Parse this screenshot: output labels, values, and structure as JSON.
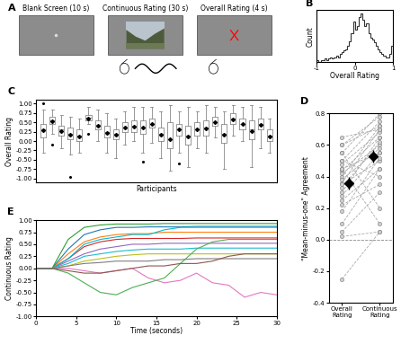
{
  "diagram": {
    "label": "A",
    "type": "task_schematic",
    "screens": [
      "Blank Screen (10 s)",
      "Continuous Rating (30 s)",
      "Overall Rating (4 s)"
    ]
  },
  "chart_data": [
    {
      "type": "histogram",
      "title": "B",
      "x_label": "Overall Rating",
      "y_label": "Count",
      "bins": [
        -1.0,
        -0.95,
        -0.9,
        -0.85,
        -0.8,
        -0.75,
        -0.7,
        -0.65,
        -0.6,
        -0.55,
        -0.5,
        -0.45,
        -0.4,
        -0.35,
        -0.3,
        -0.25,
        -0.2,
        -0.15,
        -0.1,
        -0.05,
        0.0,
        0.05,
        0.1,
        0.15,
        0.2,
        0.25,
        0.3,
        0.35,
        0.4,
        0.45,
        0.5,
        0.55,
        0.6,
        0.65,
        0.7,
        0.75,
        0.8,
        0.85,
        0.9,
        0.95,
        1.0
      ],
      "counts": [
        1,
        0,
        1,
        1,
        2,
        1,
        2,
        3,
        2,
        3,
        4,
        3,
        5,
        6,
        7,
        8,
        10,
        13,
        18,
        25,
        20,
        22,
        28,
        30,
        26,
        22,
        24,
        18,
        15,
        14,
        12,
        10,
        8,
        6,
        5,
        4,
        3,
        3,
        5,
        10
      ],
      "color": "#333333",
      "xlim": [
        -1,
        1
      ],
      "xticks": [
        -1,
        0,
        1
      ],
      "ylim": [
        0,
        32
      ],
      "tick_labels": "x"
    },
    {
      "type": "box",
      "title": "C",
      "x_label": "Participants",
      "y_label": "Overall Rating",
      "categories": [
        null,
        null,
        null,
        null,
        null,
        null,
        null,
        null,
        null,
        null,
        null,
        null,
        null,
        null,
        null,
        null,
        null,
        null,
        null,
        null,
        null,
        null,
        null,
        null,
        null,
        null
      ],
      "boxes": [
        {
          "whislo": -0.3,
          "q1": 0.1,
          "med": 0.3,
          "q3": 0.45,
          "whishi": 0.85,
          "mean": 0.28,
          "fliers": [
            1.0
          ]
        },
        {
          "whislo": 0.2,
          "q1": 0.45,
          "med": 0.55,
          "q3": 0.65,
          "whishi": 0.85,
          "mean": 0.52,
          "fliers": [
            -0.1
          ]
        },
        {
          "whislo": -0.2,
          "q1": 0.15,
          "med": 0.3,
          "q3": 0.4,
          "whishi": 0.7,
          "mean": 0.27,
          "fliers": []
        },
        {
          "whislo": -0.35,
          "q1": 0.05,
          "med": 0.2,
          "q3": 0.35,
          "whishi": 0.65,
          "mean": 0.18,
          "fliers": [
            -0.95
          ]
        },
        {
          "whislo": -0.3,
          "q1": 0.0,
          "med": 0.15,
          "q3": 0.3,
          "whishi": 0.6,
          "mean": 0.13,
          "fliers": []
        },
        {
          "whislo": 0.45,
          "q1": 0.55,
          "med": 0.62,
          "q3": 0.7,
          "whishi": 0.9,
          "mean": 0.6,
          "fliers": [
            0.2
          ]
        },
        {
          "whislo": 0.0,
          "q1": 0.3,
          "med": 0.42,
          "q3": 0.55,
          "whishi": 0.85,
          "mean": 0.4,
          "fliers": []
        },
        {
          "whislo": -0.3,
          "q1": 0.1,
          "med": 0.25,
          "q3": 0.4,
          "whishi": 0.75,
          "mean": 0.22,
          "fliers": []
        },
        {
          "whislo": -0.45,
          "q1": 0.05,
          "med": 0.2,
          "q3": 0.3,
          "whishi": 0.6,
          "mean": 0.17,
          "fliers": []
        },
        {
          "whislo": -0.1,
          "q1": 0.25,
          "med": 0.35,
          "q3": 0.5,
          "whishi": 0.8,
          "mean": 0.37,
          "fliers": []
        },
        {
          "whislo": 0.0,
          "q1": 0.25,
          "med": 0.4,
          "q3": 0.55,
          "whishi": 0.9,
          "mean": 0.38,
          "fliers": []
        },
        {
          "whislo": -0.3,
          "q1": 0.2,
          "med": 0.35,
          "q3": 0.55,
          "whishi": 0.9,
          "mean": 0.35,
          "fliers": [
            -0.55
          ]
        },
        {
          "whislo": -0.05,
          "q1": 0.35,
          "med": 0.45,
          "q3": 0.6,
          "whishi": 0.9,
          "mean": 0.45,
          "fliers": []
        },
        {
          "whislo": -0.45,
          "q1": 0.0,
          "med": 0.2,
          "q3": 0.35,
          "whishi": 0.8,
          "mean": 0.18,
          "fliers": []
        },
        {
          "whislo": -0.8,
          "q1": -0.2,
          "med": 0.05,
          "q3": 0.5,
          "whishi": 0.95,
          "mean": 0.05,
          "fliers": []
        },
        {
          "whislo": -0.3,
          "q1": 0.15,
          "med": 0.3,
          "q3": 0.45,
          "whishi": 0.8,
          "mean": 0.3,
          "fliers": [
            -0.6
          ]
        },
        {
          "whislo": -0.7,
          "q1": -0.1,
          "med": 0.15,
          "q3": 0.4,
          "whishi": 0.9,
          "mean": 0.12,
          "fliers": []
        },
        {
          "whislo": -0.2,
          "q1": 0.15,
          "med": 0.3,
          "q3": 0.5,
          "whishi": 0.8,
          "mean": 0.32,
          "fliers": []
        },
        {
          "whislo": -0.3,
          "q1": 0.15,
          "med": 0.35,
          "q3": 0.55,
          "whishi": 0.95,
          "mean": 0.33,
          "fliers": []
        },
        {
          "whislo": 0.1,
          "q1": 0.4,
          "med": 0.5,
          "q3": 0.65,
          "whishi": 0.9,
          "mean": 0.5,
          "fliers": []
        },
        {
          "whislo": -0.75,
          "q1": -0.05,
          "med": 0.2,
          "q3": 0.45,
          "whishi": 0.8,
          "mean": 0.18,
          "fliers": []
        },
        {
          "whislo": 0.15,
          "q1": 0.45,
          "med": 0.6,
          "q3": 0.75,
          "whishi": 0.95,
          "mean": 0.58,
          "fliers": []
        },
        {
          "whislo": 0.0,
          "q1": 0.3,
          "med": 0.45,
          "q3": 0.6,
          "whishi": 0.9,
          "mean": 0.45,
          "fliers": []
        },
        {
          "whislo": -0.7,
          "q1": 0.05,
          "med": 0.3,
          "q3": 0.55,
          "whishi": 0.95,
          "mean": 0.27,
          "fliers": []
        },
        {
          "whislo": -0.2,
          "q1": 0.3,
          "med": 0.45,
          "q3": 0.6,
          "whishi": 0.9,
          "mean": 0.44,
          "fliers": []
        },
        {
          "whislo": -0.3,
          "q1": 0.0,
          "med": 0.15,
          "q3": 0.3,
          "whishi": 0.6,
          "mean": 0.13,
          "fliers": []
        }
      ],
      "color": "#888888",
      "ylim": [
        -1.1,
        1.1
      ],
      "yticks": [
        {
          "value": -1,
          "label": "-1.00"
        },
        {
          "value": -0.75,
          "label": "-0.75"
        },
        {
          "value": -0.5,
          "label": "-0.50"
        },
        {
          "value": -0.25,
          "label": "-0.25"
        },
        {
          "value": 0,
          "label": "0.00"
        },
        {
          "value": 0.25,
          "label": "0.25"
        },
        {
          "value": 0.5,
          "label": "0.50"
        },
        {
          "value": 0.75,
          "label": "0.75"
        },
        {
          "value": 1,
          "label": "1.00"
        }
      ],
      "tick_labels": "y"
    },
    {
      "type": "paired",
      "title": "D",
      "y_label": "\"Mean-minus-one\" Agreement",
      "categories": [
        "Overall Rating",
        "Continuous Rating"
      ],
      "pairs": [
        [
          0.65,
          0.7
        ],
        [
          0.6,
          0.72
        ],
        [
          0.55,
          0.8
        ],
        [
          0.5,
          0.75
        ],
        [
          0.48,
          0.68
        ],
        [
          0.45,
          0.55
        ],
        [
          0.44,
          0.65
        ],
        [
          0.42,
          0.6
        ],
        [
          0.4,
          0.72
        ],
        [
          0.38,
          0.58
        ],
        [
          0.36,
          0.7
        ],
        [
          0.35,
          0.5
        ],
        [
          0.33,
          0.62
        ],
        [
          0.3,
          0.65
        ],
        [
          0.28,
          0.55
        ],
        [
          0.25,
          0.45
        ],
        [
          0.22,
          0.35
        ],
        [
          0.5,
          0.4
        ],
        [
          0.55,
          0.2
        ],
        [
          0.45,
          0.1
        ],
        [
          0.18,
          0.52
        ],
        [
          0.1,
          0.45
        ],
        [
          0.05,
          0.3
        ],
        [
          0.02,
          0.05
        ],
        [
          -0.25,
          0.05
        ],
        [
          0.6,
          0.78
        ]
      ],
      "means": [
        0.36,
        0.53
      ],
      "errors": [
        0.04,
        0.04
      ],
      "reference_line": 0,
      "color": "#aaaaaa",
      "line_style": "dashed",
      "ylim": [
        -0.4,
        0.8
      ],
      "yticks": [
        -0.4,
        -0.2,
        0.0,
        0.2,
        0.4,
        0.6,
        0.8
      ]
    },
    {
      "type": "line",
      "title": "E",
      "x_label": "Time (seconds)",
      "y_label": "Continuous Rating",
      "x": [
        0,
        2,
        4,
        6,
        8,
        10,
        12,
        14,
        16,
        18,
        20,
        22,
        24,
        26,
        28,
        30
      ],
      "series": [
        {
          "color": "#2ca02c",
          "values": [
            0,
            0,
            0.6,
            0.85,
            0.9,
            0.92,
            0.92,
            0.92,
            0.93,
            0.93,
            0.93,
            0.93,
            0.93,
            0.93,
            0.93,
            0.93
          ]
        },
        {
          "color": "#1f77b4",
          "values": [
            0,
            0,
            0.4,
            0.7,
            0.8,
            0.85,
            0.85,
            0.86,
            0.86,
            0.86,
            0.87,
            0.87,
            0.87,
            0.87,
            0.87,
            0.87
          ]
        },
        {
          "color": "#ff7f0e",
          "values": [
            0,
            0,
            0.3,
            0.55,
            0.65,
            0.7,
            0.72,
            0.72,
            0.75,
            0.75,
            0.75,
            0.75,
            0.75,
            0.75,
            0.75,
            0.75
          ]
        },
        {
          "color": "#d62728",
          "values": [
            0,
            0,
            0.2,
            0.45,
            0.55,
            0.6,
            0.62,
            0.62,
            0.62,
            0.62,
            0.63,
            0.63,
            0.63,
            0.63,
            0.63,
            0.63
          ]
        },
        {
          "color": "#9467bd",
          "values": [
            0,
            0,
            0.15,
            0.3,
            0.4,
            0.45,
            0.5,
            0.5,
            0.52,
            0.52,
            0.52,
            0.52,
            0.52,
            0.52,
            0.52,
            0.52
          ]
        },
        {
          "color": "#17becf",
          "values": [
            0,
            0,
            0.1,
            0.25,
            0.3,
            0.35,
            0.38,
            0.4,
            0.4,
            0.4,
            0.42,
            0.42,
            0.42,
            0.42,
            0.42,
            0.42
          ]
        },
        {
          "color": "#bcbd22",
          "values": [
            0,
            0,
            0.05,
            0.15,
            0.2,
            0.25,
            0.28,
            0.3,
            0.3,
            0.3,
            0.3,
            0.3,
            0.3,
            0.3,
            0.3,
            0.3
          ]
        },
        {
          "color": "#e377c2",
          "values": [
            0,
            0,
            0,
            -0.05,
            -0.1,
            -0.05,
            0,
            -0.2,
            -0.3,
            -0.25,
            -0.1,
            -0.3,
            -0.35,
            -0.6,
            -0.5,
            -0.55
          ]
        },
        {
          "color": "#4caf50",
          "values": [
            0,
            0,
            -0.1,
            -0.3,
            -0.5,
            -0.55,
            -0.4,
            -0.3,
            -0.2,
            0.1,
            0.4,
            0.55,
            0.6,
            0.6,
            0.6,
            0.6
          ]
        },
        {
          "color": "#7f7f7f",
          "values": [
            0,
            0,
            0.05,
            0.1,
            0.12,
            0.15,
            0.15,
            0.15,
            0.18,
            0.18,
            0.2,
            0.2,
            0.2,
            0.2,
            0.2,
            0.2
          ]
        },
        {
          "color": "#00bcd4",
          "values": [
            0,
            0,
            0.2,
            0.5,
            0.6,
            0.65,
            0.7,
            0.7,
            0.8,
            0.85,
            0.85,
            0.85,
            0.85,
            0.85,
            0.85,
            0.85
          ]
        },
        {
          "color": "#8c564b",
          "values": [
            0,
            0,
            -0.05,
            -0.1,
            -0.1,
            -0.05,
            0,
            0.05,
            0.05,
            0.1,
            0.1,
            0.15,
            0.25,
            0.3,
            0.3,
            0.3
          ]
        }
      ],
      "xlim": [
        0,
        30
      ],
      "xticks": [
        0,
        5,
        10,
        15,
        20,
        25,
        30
      ],
      "ylim": [
        -1,
        1
      ],
      "yticks": [
        {
          "value": -1,
          "label": "-1.00"
        },
        {
          "value": -0.75,
          "label": "-0.75"
        },
        {
          "value": -0.5,
          "label": "-0.50"
        },
        {
          "value": -0.25,
          "label": "-0.25"
        },
        {
          "value": 0,
          "label": "0.00"
        },
        {
          "value": 0.25,
          "label": "0.25"
        },
        {
          "value": 0.5,
          "label": "0.50"
        },
        {
          "value": 0.75,
          "label": "0.75"
        },
        {
          "value": 1,
          "label": "1.00"
        }
      ]
    }
  ]
}
